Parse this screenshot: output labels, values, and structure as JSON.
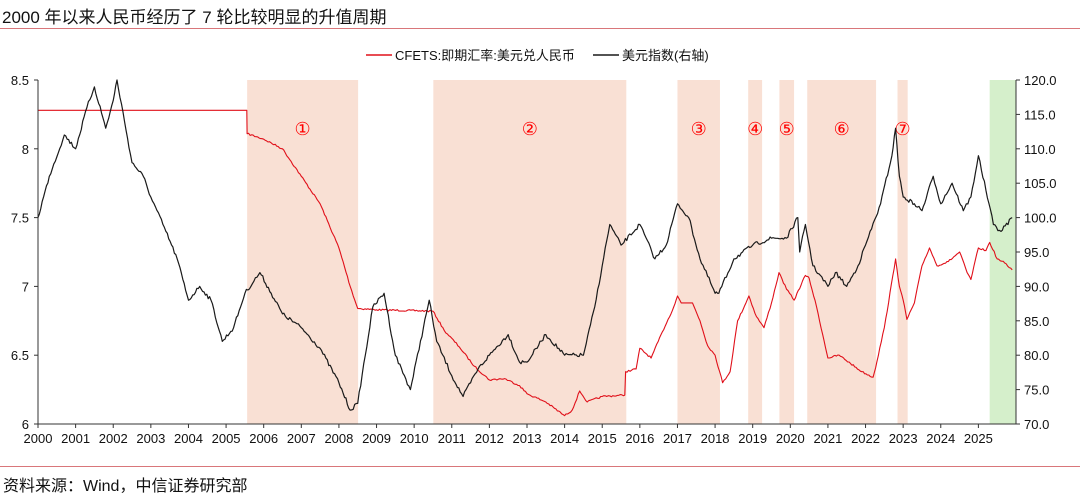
{
  "title": "2000 年以来人民币经历了 7 轮比较明显的升值周期",
  "source": "资料来源：Wind，中信证券研究部",
  "chart_data": {
    "type": "line",
    "title": "2000 年以来人民币经历了 7 轮比较明显的升值周期",
    "xlim": [
      2000,
      2026
    ],
    "x_ticks": [
      "2000",
      "2001",
      "2002",
      "2003",
      "2004",
      "2005",
      "2006",
      "2007",
      "2008",
      "2009",
      "2010",
      "2011",
      "2012",
      "2013",
      "2014",
      "2015",
      "2016",
      "2017",
      "2018",
      "2019",
      "2020",
      "2021",
      "2022",
      "2023",
      "2024",
      "2025"
    ],
    "y_left": {
      "lim": [
        6,
        8.5
      ],
      "ticks": [
        "6",
        "6.5",
        "7",
        "7.5",
        "8",
        "8.5"
      ]
    },
    "y_right": {
      "lim": [
        70,
        120
      ],
      "ticks": [
        "70.0",
        "75.0",
        "80.0",
        "85.0",
        "90.0",
        "95.0",
        "100.0",
        "105.0",
        "110.0",
        "115.0",
        "120.0"
      ]
    },
    "grid": false,
    "legend_position": "top",
    "series": [
      {
        "name": "CFETS:即期汇率:美元兑人民币",
        "axis": "left",
        "color": "#e0101a",
        "points": [
          [
            2000,
            8.28
          ],
          [
            2005.55,
            8.28
          ],
          [
            2005.56,
            8.11
          ],
          [
            2006,
            8.07
          ],
          [
            2006.5,
            8.0
          ],
          [
            2007,
            7.8
          ],
          [
            2007.5,
            7.6
          ],
          [
            2008,
            7.28
          ],
          [
            2008.3,
            7.0
          ],
          [
            2008.5,
            6.84
          ],
          [
            2009,
            6.83
          ],
          [
            2010.5,
            6.82
          ],
          [
            2010.8,
            6.68
          ],
          [
            2011.2,
            6.56
          ],
          [
            2011.6,
            6.42
          ],
          [
            2012,
            6.32
          ],
          [
            2012.4,
            6.33
          ],
          [
            2012.8,
            6.28
          ],
          [
            2013,
            6.22
          ],
          [
            2013.5,
            6.16
          ],
          [
            2014,
            6.06
          ],
          [
            2014.2,
            6.1
          ],
          [
            2014.4,
            6.24
          ],
          [
            2014.6,
            6.16
          ],
          [
            2015,
            6.2
          ],
          [
            2015.6,
            6.21
          ],
          [
            2015.62,
            6.38
          ],
          [
            2015.9,
            6.4
          ],
          [
            2016,
            6.55
          ],
          [
            2016.3,
            6.48
          ],
          [
            2016.6,
            6.67
          ],
          [
            2016.9,
            6.85
          ],
          [
            2017,
            6.93
          ],
          [
            2017.1,
            6.88
          ],
          [
            2017.4,
            6.88
          ],
          [
            2017.6,
            6.75
          ],
          [
            2017.8,
            6.57
          ],
          [
            2018.0,
            6.5
          ],
          [
            2018.2,
            6.3
          ],
          [
            2018.4,
            6.38
          ],
          [
            2018.6,
            6.75
          ],
          [
            2018.9,
            6.93
          ],
          [
            2019.1,
            6.78
          ],
          [
            2019.3,
            6.7
          ],
          [
            2019.5,
            6.88
          ],
          [
            2019.7,
            7.1
          ],
          [
            2019.9,
            6.98
          ],
          [
            2020.1,
            6.9
          ],
          [
            2020.4,
            7.08
          ],
          [
            2020.5,
            7.06
          ],
          [
            2020.7,
            6.85
          ],
          [
            2020.9,
            6.6
          ],
          [
            2021.0,
            6.48
          ],
          [
            2021.3,
            6.5
          ],
          [
            2021.6,
            6.44
          ],
          [
            2021.9,
            6.38
          ],
          [
            2022.2,
            6.34
          ],
          [
            2022.3,
            6.45
          ],
          [
            2022.5,
            6.7
          ],
          [
            2022.8,
            7.2
          ],
          [
            2022.9,
            7.0
          ],
          [
            2023.0,
            6.9
          ],
          [
            2023.1,
            6.76
          ],
          [
            2023.3,
            6.88
          ],
          [
            2023.5,
            7.15
          ],
          [
            2023.7,
            7.28
          ],
          [
            2023.9,
            7.15
          ],
          [
            2024.2,
            7.18
          ],
          [
            2024.5,
            7.25
          ],
          [
            2024.7,
            7.1
          ],
          [
            2024.8,
            7.05
          ],
          [
            2025.0,
            7.28
          ],
          [
            2025.2,
            7.26
          ],
          [
            2025.3,
            7.32
          ],
          [
            2025.5,
            7.2
          ],
          [
            2025.7,
            7.17
          ],
          [
            2025.9,
            7.12
          ]
        ]
      },
      {
        "name": "美元指数(右轴)",
        "axis": "right",
        "color": "#1a1a1a",
        "points": [
          [
            2000,
            100
          ],
          [
            2000.3,
            106
          ],
          [
            2000.7,
            112
          ],
          [
            2001,
            110
          ],
          [
            2001.3,
            116
          ],
          [
            2001.5,
            119
          ],
          [
            2001.8,
            113
          ],
          [
            2002,
            117
          ],
          [
            2002.1,
            120
          ],
          [
            2002.3,
            114
          ],
          [
            2002.5,
            108
          ],
          [
            2002.8,
            106
          ],
          [
            2003,
            103
          ],
          [
            2003.4,
            98
          ],
          [
            2003.7,
            94
          ],
          [
            2004,
            88
          ],
          [
            2004.3,
            90
          ],
          [
            2004.6,
            88
          ],
          [
            2004.9,
            82
          ],
          [
            2005.2,
            84
          ],
          [
            2005.5,
            89
          ],
          [
            2005.9,
            92
          ],
          [
            2006.2,
            89
          ],
          [
            2006.5,
            86
          ],
          [
            2007,
            84
          ],
          [
            2007.5,
            81
          ],
          [
            2008,
            76
          ],
          [
            2008.3,
            72
          ],
          [
            2008.5,
            73
          ],
          [
            2008.9,
            87
          ],
          [
            2009.2,
            89
          ],
          [
            2009.5,
            80
          ],
          [
            2009.9,
            75
          ],
          [
            2010.4,
            88
          ],
          [
            2010.6,
            82
          ],
          [
            2011,
            77
          ],
          [
            2011.3,
            74
          ],
          [
            2011.7,
            78
          ],
          [
            2012,
            80
          ],
          [
            2012.5,
            83
          ],
          [
            2012.8,
            79
          ],
          [
            2013,
            79
          ],
          [
            2013.5,
            83
          ],
          [
            2014,
            80
          ],
          [
            2014.5,
            80
          ],
          [
            2014.8,
            87
          ],
          [
            2015,
            93
          ],
          [
            2015.2,
            99
          ],
          [
            2015.5,
            96
          ],
          [
            2016,
            99
          ],
          [
            2016.4,
            94
          ],
          [
            2016.7,
            96
          ],
          [
            2017,
            102
          ],
          [
            2017.3,
            100
          ],
          [
            2017.6,
            94
          ],
          [
            2018,
            89
          ],
          [
            2018.1,
            89
          ],
          [
            2018.5,
            94
          ],
          [
            2019,
            96
          ],
          [
            2019.5,
            97
          ],
          [
            2019.9,
            97
          ],
          [
            2020.2,
            100
          ],
          [
            2020.25,
            95
          ],
          [
            2020.4,
            99
          ],
          [
            2020.6,
            93
          ],
          [
            2021,
            90
          ],
          [
            2021.2,
            92
          ],
          [
            2021.5,
            90
          ],
          [
            2021.8,
            93
          ],
          [
            2022,
            96
          ],
          [
            2022.4,
            102
          ],
          [
            2022.7,
            109
          ],
          [
            2022.8,
            113
          ],
          [
            2022.9,
            106
          ],
          [
            2023,
            103
          ],
          [
            2023.3,
            102
          ],
          [
            2023.5,
            101
          ],
          [
            2023.8,
            106
          ],
          [
            2024,
            102
          ],
          [
            2024.3,
            105
          ],
          [
            2024.6,
            101
          ],
          [
            2024.8,
            103
          ],
          [
            2025,
            109
          ],
          [
            2025.2,
            104
          ],
          [
            2025.4,
            99
          ],
          [
            2025.6,
            98
          ],
          [
            2025.9,
            100
          ]
        ]
      }
    ],
    "shaded_periods": [
      {
        "label": "①",
        "start": 2005.56,
        "end": 2008.51,
        "color": "#f9e0d4"
      },
      {
        "label": "②",
        "start": 2010.51,
        "end": 2015.64,
        "color": "#f9e0d4"
      },
      {
        "label": "③",
        "start": 2017.0,
        "end": 2018.13,
        "color": "#f9e0d4"
      },
      {
        "label": "④",
        "start": 2018.88,
        "end": 2019.25,
        "color": "#f9e0d4"
      },
      {
        "label": "⑤",
        "start": 2019.71,
        "end": 2020.1,
        "color": "#f9e0d4"
      },
      {
        "label": "⑥",
        "start": 2020.45,
        "end": 2022.28,
        "color": "#f9e0d4"
      },
      {
        "label": "⑦",
        "start": 2022.85,
        "end": 2023.12,
        "color": "#f9e0d4"
      },
      {
        "label": "",
        "start": 2025.3,
        "end": 2026.0,
        "color": "#d5efcb"
      }
    ],
    "annotation_color": "#ff0000"
  }
}
